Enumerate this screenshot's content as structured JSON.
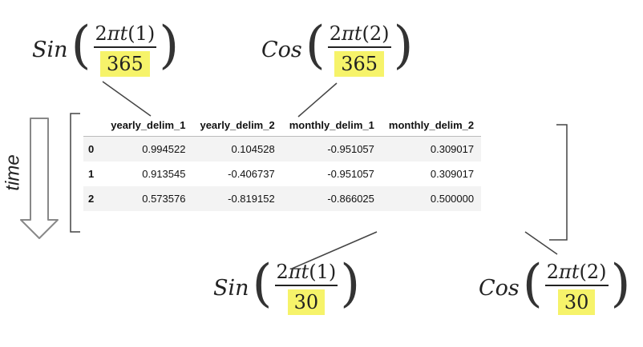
{
  "formulas": {
    "top_left": {
      "fn": "Sin",
      "numerator": "2πt(1)",
      "denominator": "365"
    },
    "top_right": {
      "fn": "Cos",
      "numerator": "2πt(2)",
      "denominator": "365"
    },
    "bottom_left": {
      "fn": "Sin",
      "numerator": "2πt(1)",
      "denominator": "30"
    },
    "bottom_right": {
      "fn": "Cos",
      "numerator": "2πt(2)",
      "denominator": "30"
    }
  },
  "time_label": "time",
  "table": {
    "columns": [
      "",
      "yearly_delim_1",
      "yearly_delim_2",
      "monthly_delim_1",
      "monthly_delim_2"
    ],
    "rows": [
      [
        "0",
        "0.994522",
        "0.104528",
        "-0.951057",
        "0.309017"
      ],
      [
        "1",
        "0.913545",
        "-0.406737",
        "-0.951057",
        "0.309017"
      ],
      [
        "2",
        "0.573576",
        "-0.819152",
        "-0.866025",
        "0.500000"
      ]
    ]
  },
  "colors": {
    "highlight": "#f6f36a",
    "arrow": "#888888",
    "lines": "#444444"
  }
}
